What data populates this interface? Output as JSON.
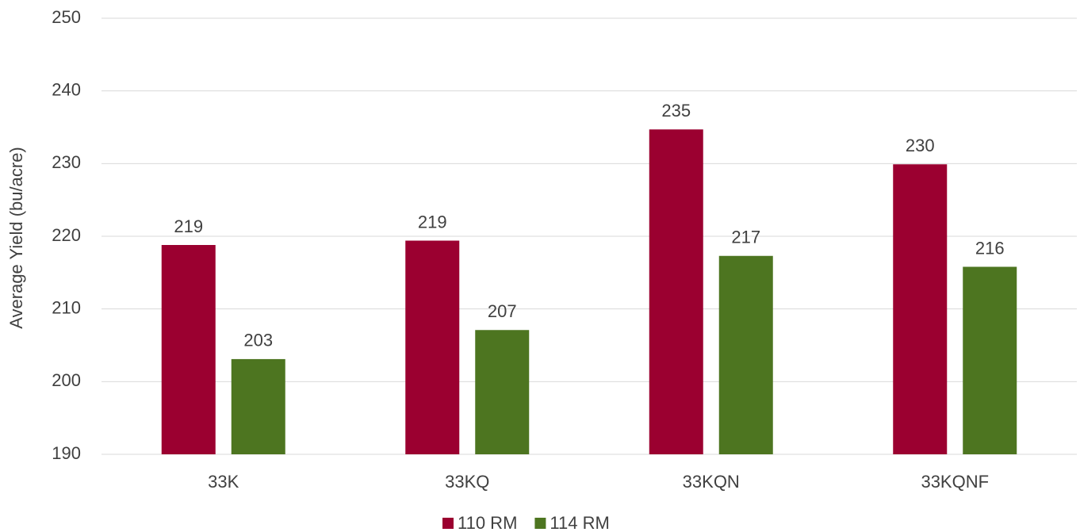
{
  "chart_data": {
    "type": "bar",
    "y_label": "Average Yield (bu/acre)",
    "categories": [
      "33K",
      "33KQ",
      "33KQN",
      "33KQNF"
    ],
    "series": [
      {
        "name": "110 RM",
        "color": "#9b0030",
        "values": [
          218.8,
          219.4,
          234.7,
          229.9
        ],
        "value_labels": [
          "219",
          "219",
          "235",
          "230"
        ]
      },
      {
        "name": "114 RM",
        "color": "#4d7520",
        "values": [
          203.1,
          207.1,
          217.3,
          215.8
        ],
        "value_labels": [
          "203",
          "207",
          "217",
          "216"
        ]
      }
    ],
    "ylim": [
      190,
      250
    ],
    "yticks": [
      190,
      200,
      210,
      220,
      230,
      240,
      250
    ],
    "grid": true,
    "legend": "bottom"
  }
}
